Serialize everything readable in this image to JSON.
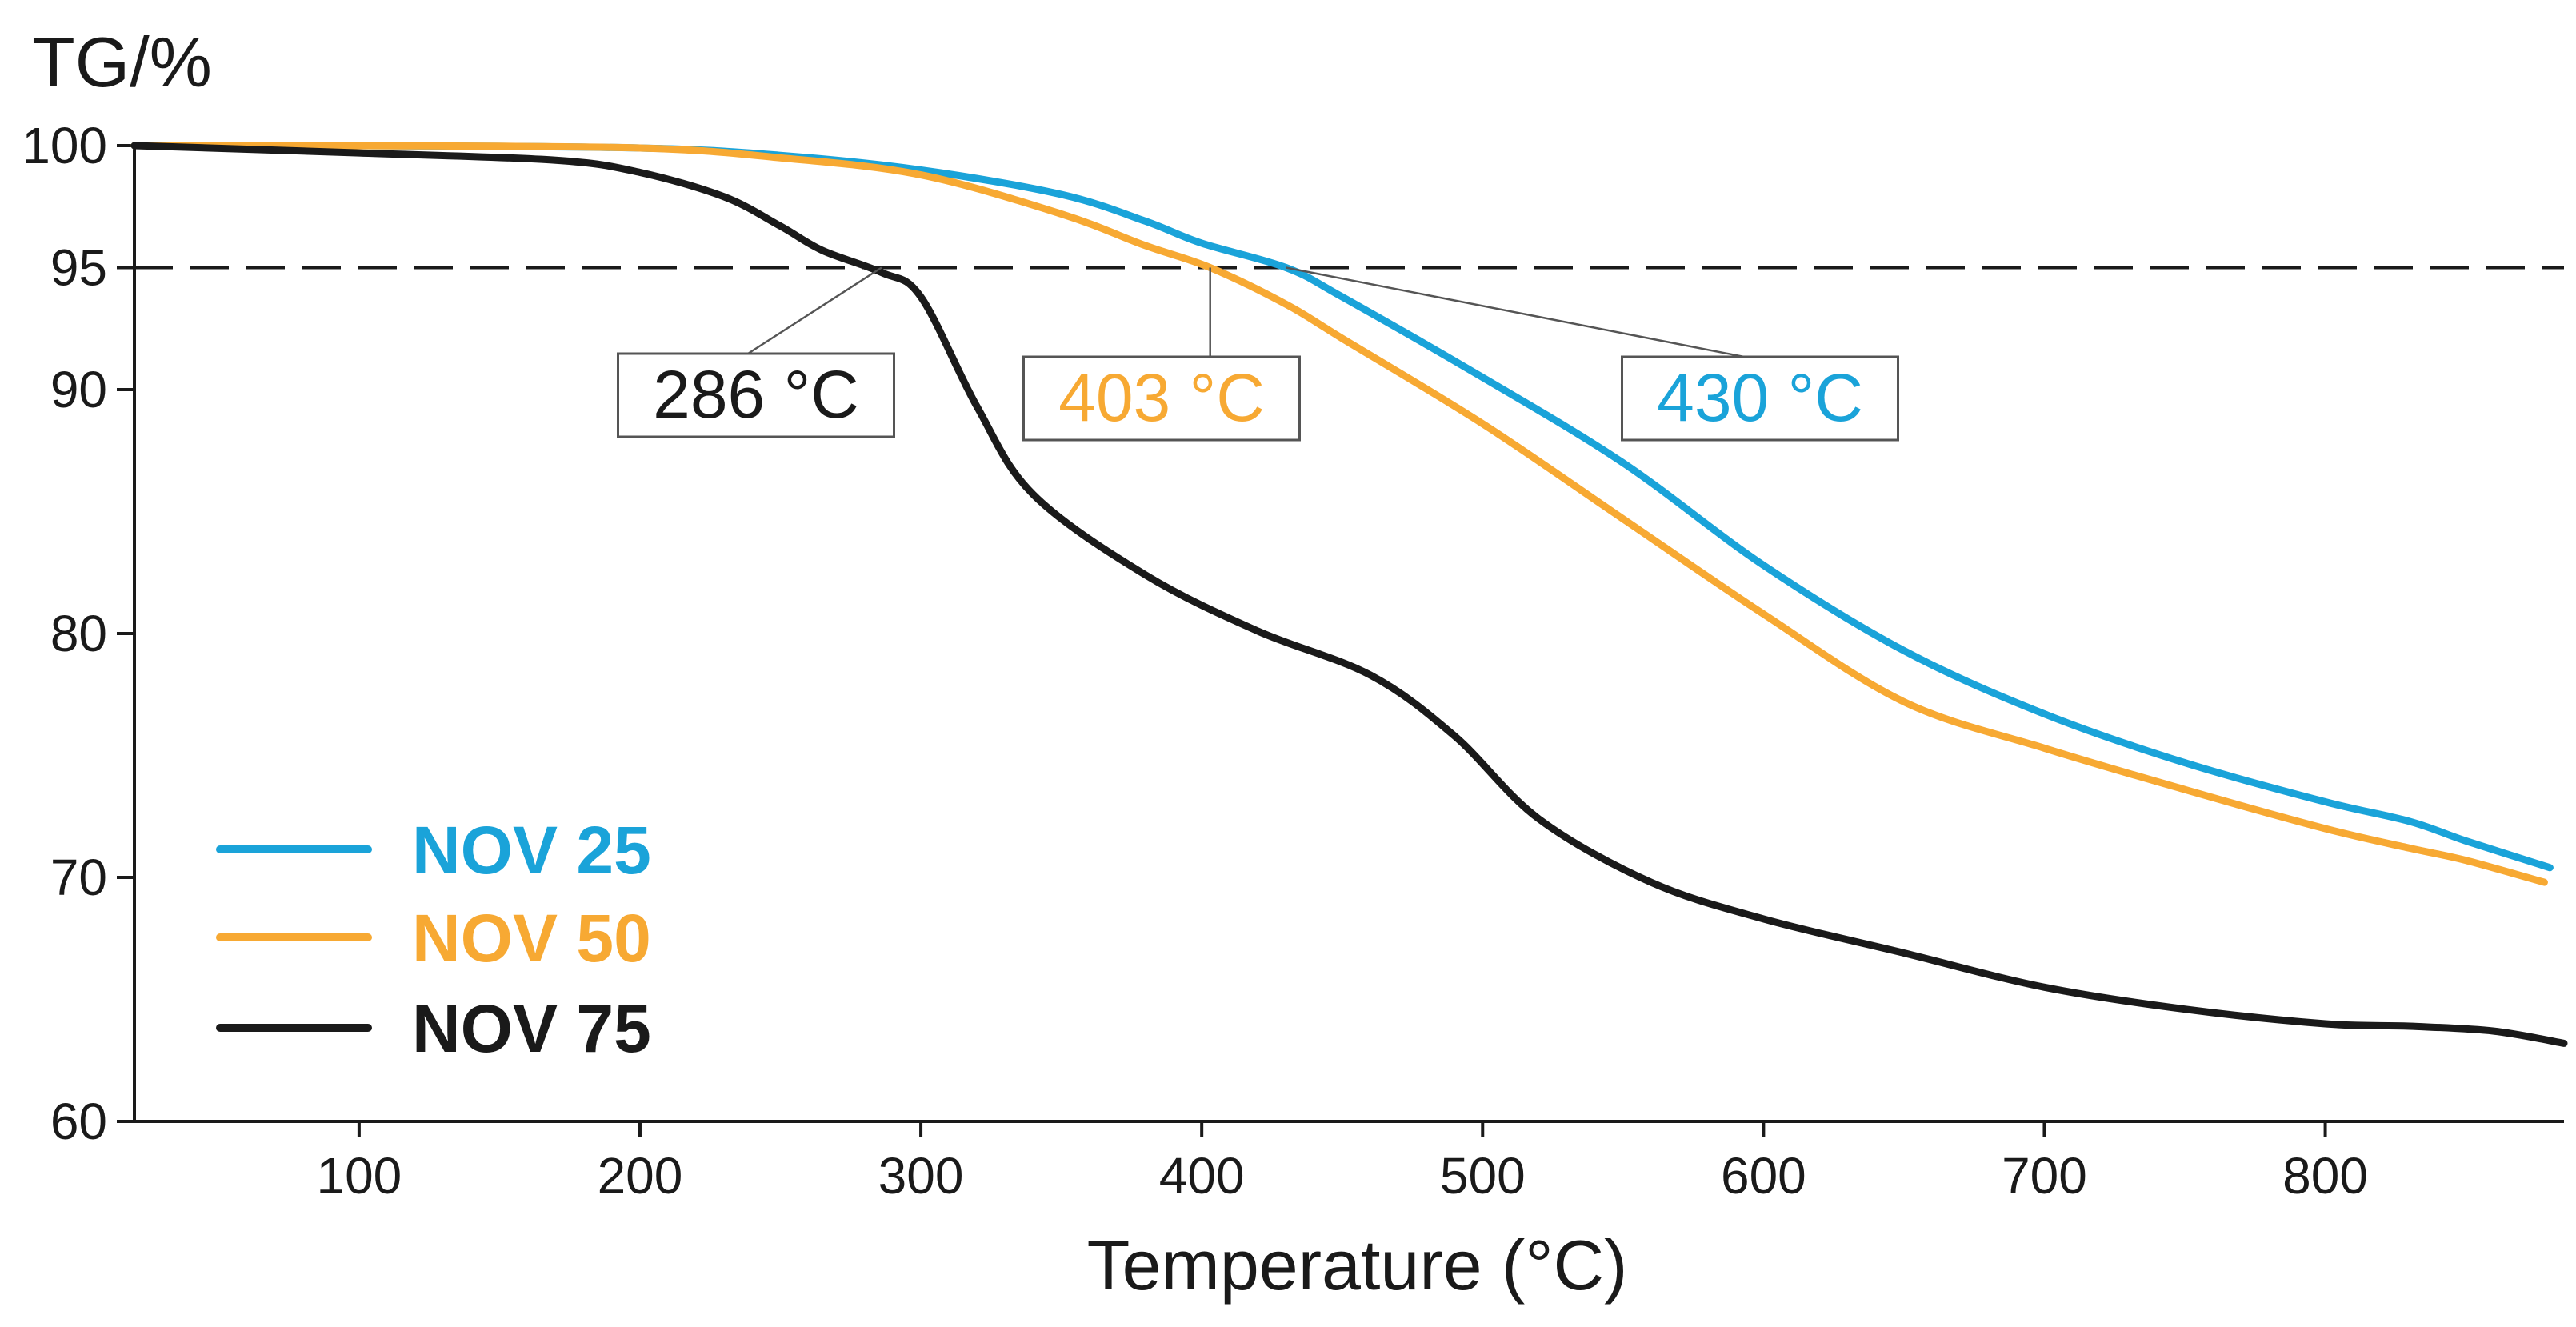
{
  "chart_data": {
    "type": "line",
    "title": "",
    "ylabel": "TG/%",
    "xlabel": "Temperature (°C)",
    "xlim": [
      20,
      885
    ],
    "ylim": [
      60,
      100
    ],
    "x_ticks": [
      100,
      200,
      300,
      400,
      500,
      600,
      700,
      800
    ],
    "y_ticks": [
      60,
      70,
      80,
      90,
      95,
      100
    ],
    "grid": false,
    "legend_position": "bottom-left",
    "reference_line": {
      "y": 95,
      "style": "dashed",
      "color": "#1a1a1a"
    },
    "series": [
      {
        "name": "NOV 25",
        "color": "#1aa3d9",
        "x": [
          20,
          100,
          200,
          250,
          300,
          350,
          380,
          400,
          430,
          450,
          500,
          550,
          600,
          650,
          700,
          750,
          800,
          830,
          850,
          880
        ],
        "y": [
          100,
          100,
          99.9,
          99.6,
          99.0,
          98.0,
          96.9,
          96.0,
          95.0,
          93.8,
          90.5,
          87.0,
          82.8,
          79.3,
          76.7,
          74.7,
          73.1,
          72.3,
          71.5,
          70.4
        ]
      },
      {
        "name": "NOV 50",
        "color": "#f7a933",
        "x": [
          20,
          100,
          200,
          250,
          300,
          350,
          380,
          403,
          430,
          450,
          500,
          550,
          600,
          650,
          700,
          750,
          800,
          830,
          850,
          878
        ],
        "y": [
          100,
          100,
          99.9,
          99.5,
          98.8,
          97.2,
          95.9,
          95.0,
          93.5,
          92.1,
          88.6,
          84.7,
          80.8,
          77.2,
          75.3,
          73.6,
          72.0,
          71.2,
          70.7,
          69.8
        ]
      },
      {
        "name": "NOV 75",
        "color": "#1a1a1a",
        "x": [
          20,
          100,
          170,
          200,
          230,
          250,
          265,
          286,
          300,
          320,
          340,
          380,
          420,
          460,
          490,
          520,
          560,
          600,
          650,
          700,
          750,
          800,
          830,
          860,
          885
        ],
        "y": [
          100,
          99.7,
          99.4,
          98.9,
          97.9,
          96.7,
          95.7,
          94.8,
          93.8,
          89.3,
          85.7,
          82.4,
          80.1,
          78.3,
          75.8,
          72.4,
          69.8,
          68.3,
          66.9,
          65.5,
          64.6,
          64.0,
          63.9,
          63.7,
          63.2
        ]
      }
    ],
    "annotations": [
      {
        "label": "286 °C",
        "x": 286,
        "y": 95,
        "color": "#1a1a1a"
      },
      {
        "label": "403 °C",
        "x": 403,
        "y": 95,
        "color": "#f7a933"
      },
      {
        "label": "430 °C",
        "x": 430,
        "y": 95,
        "color": "#1aa3d9"
      }
    ]
  }
}
